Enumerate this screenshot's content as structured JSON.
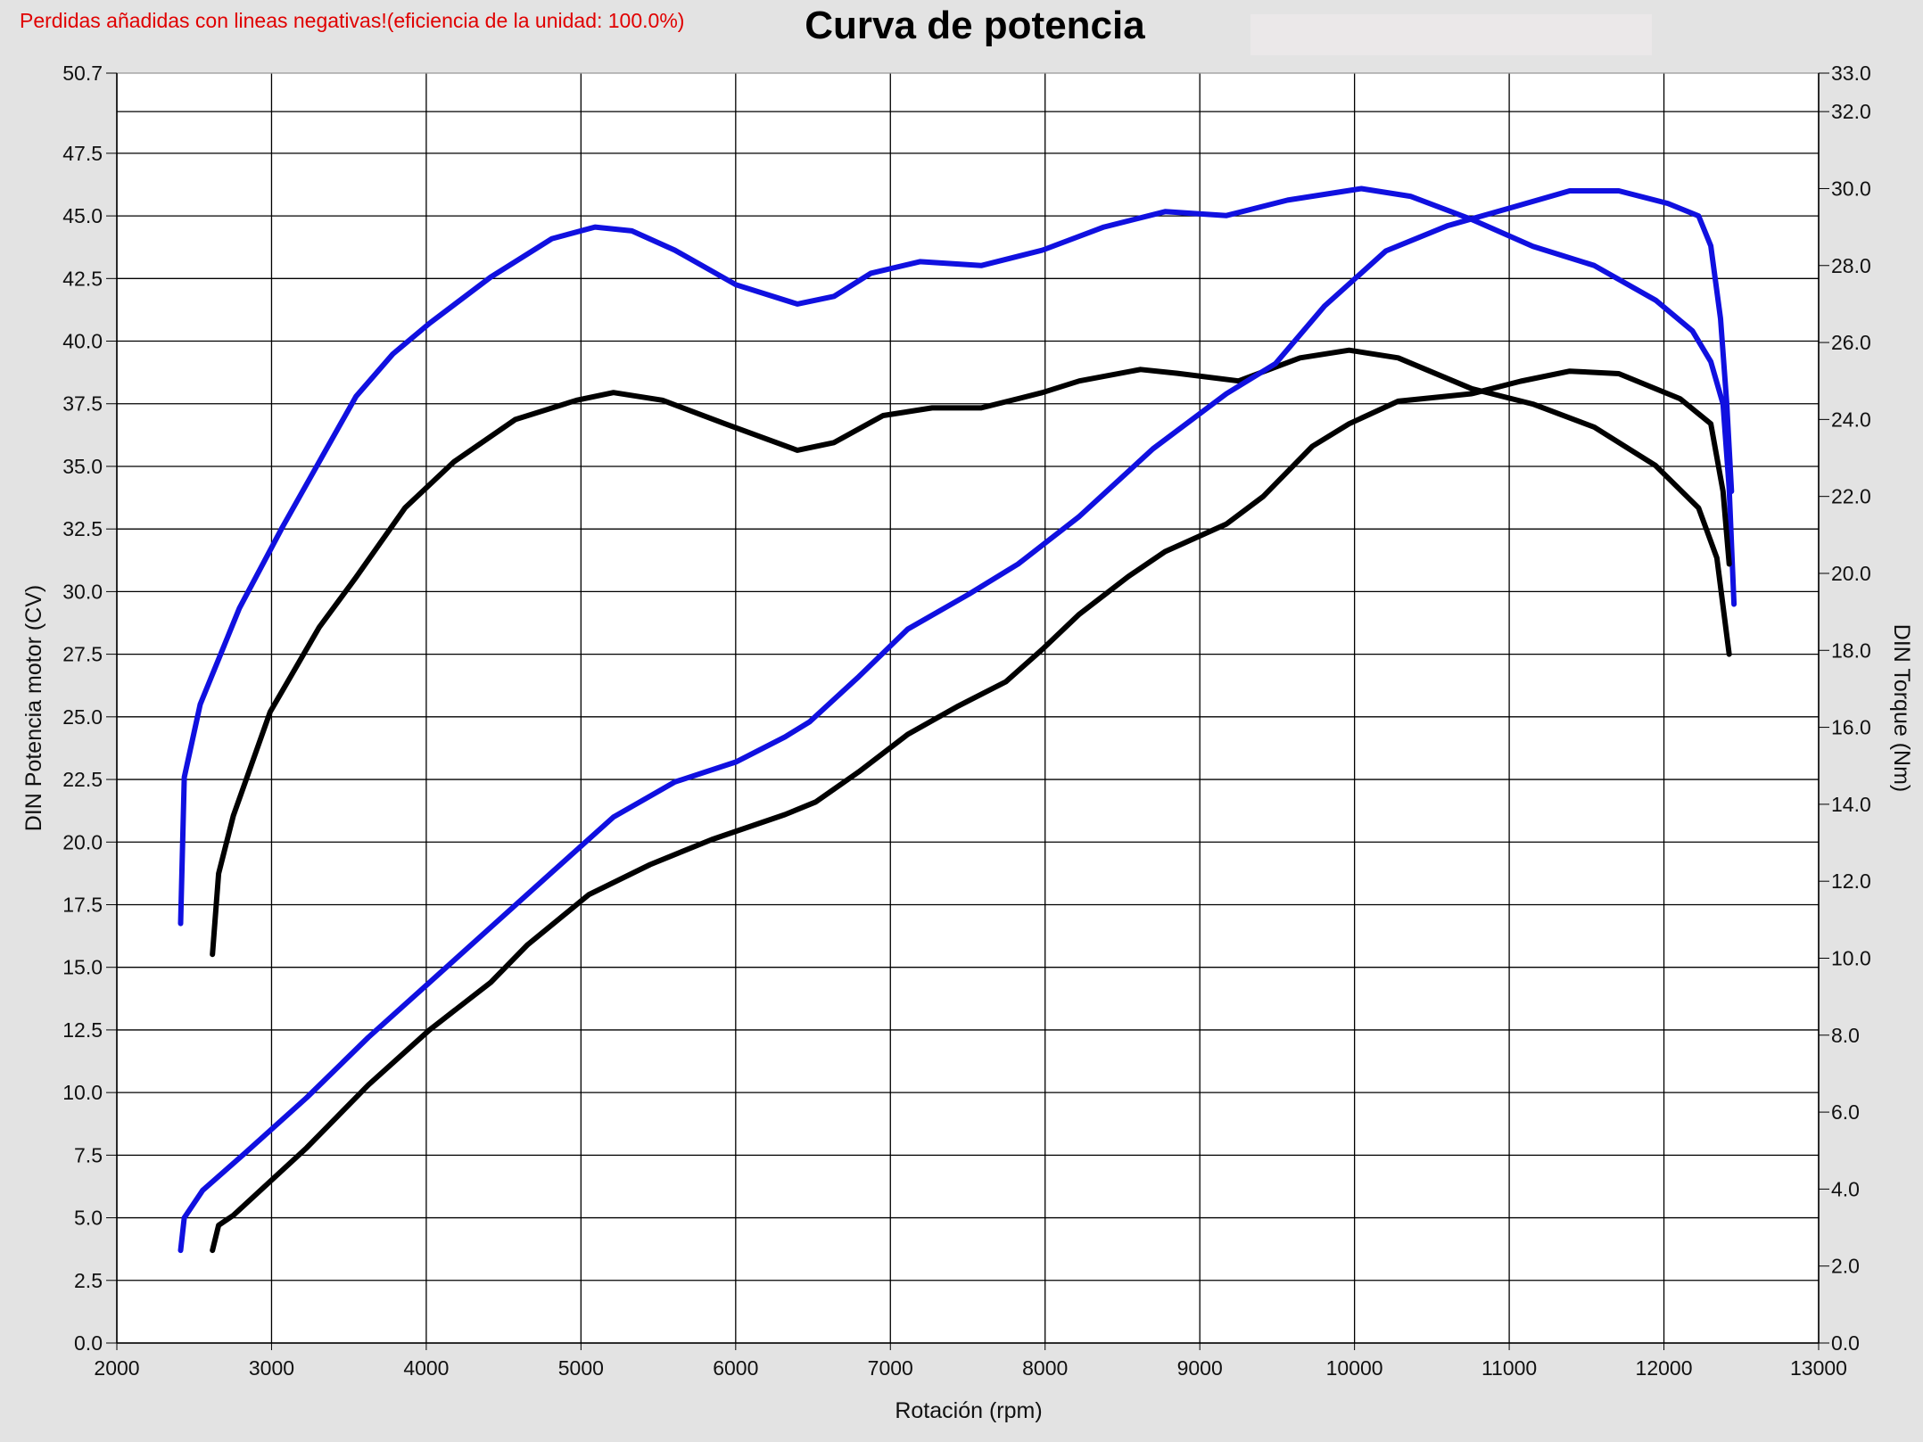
{
  "notice": "Perdidas añadidas con lineas negativas!(eficiencia de la unidad: 100.0%)",
  "colors": {
    "notice": "#e00000",
    "blue": "#1010e0",
    "black": "#000000",
    "background": "#e3e3e3",
    "plot": "#ffffff"
  },
  "chart_data": {
    "type": "line",
    "title": "Curva de potencia",
    "xlabel": "Rotación (rpm)",
    "ylabel": "DIN Potencia motor (CV)",
    "y2label": "DIN Torque (Nm)",
    "xlim": [
      2000,
      13000
    ],
    "ylim": [
      0,
      50.7
    ],
    "y2lim": [
      0,
      33.0
    ],
    "grid": true,
    "x_ticks": [
      "2000",
      "3000",
      "4000",
      "5000",
      "6000",
      "7000",
      "8000",
      "9000",
      "10000",
      "11000",
      "12000",
      "13000"
    ],
    "y_ticks": [
      "0.0",
      "2.5",
      "5.0",
      "7.5",
      "10.0",
      "12.5",
      "15.0",
      "17.5",
      "20.0",
      "22.5",
      "25.0",
      "27.5",
      "30.0",
      "32.5",
      "35.0",
      "37.5",
      "40.0",
      "42.5",
      "45.0",
      "47.5",
      "50.7"
    ],
    "y2_ticks": [
      "0.0",
      "2.0",
      "4.0",
      "6.0",
      "8.0",
      "10.0",
      "12.0",
      "14.0",
      "16.0",
      "18.0",
      "20.0",
      "22.0",
      "24.0",
      "26.0",
      "28.0",
      "30.0",
      "32.0",
      "33.0"
    ],
    "series": [
      {
        "axis": "right",
        "color": "#1010e0",
        "points": [
          [
            2412,
            10.9
          ],
          [
            2436,
            14.7
          ],
          [
            2539,
            16.6
          ],
          [
            2793,
            19.1
          ],
          [
            3070,
            21.2
          ],
          [
            3308,
            22.9
          ],
          [
            3546,
            24.6
          ],
          [
            3784,
            25.7
          ],
          [
            4021,
            26.5
          ],
          [
            4417,
            27.7
          ],
          [
            4813,
            28.7
          ],
          [
            5091,
            29.0
          ],
          [
            5329,
            28.9
          ],
          [
            5606,
            28.4
          ],
          [
            6002,
            27.5
          ],
          [
            6398,
            27.0
          ],
          [
            6636,
            27.2
          ],
          [
            6874,
            27.8
          ],
          [
            7191,
            28.1
          ],
          [
            7587,
            28.0
          ],
          [
            7983,
            28.4
          ],
          [
            8380,
            29.0
          ],
          [
            8776,
            29.4
          ],
          [
            9172,
            29.3
          ],
          [
            9568,
            29.7
          ],
          [
            10044,
            30.0
          ],
          [
            10361,
            29.8
          ],
          [
            10757,
            29.2
          ],
          [
            11153,
            28.5
          ],
          [
            11550,
            28.0
          ],
          [
            11946,
            27.1
          ],
          [
            12184,
            26.3
          ],
          [
            12303,
            25.5
          ],
          [
            12382,
            24.4
          ],
          [
            12422,
            22.2
          ],
          [
            12453,
            19.2
          ]
        ]
      },
      {
        "axis": "right",
        "color": "#000000",
        "points": [
          [
            2618,
            10.1
          ],
          [
            2658,
            12.2
          ],
          [
            2753,
            13.7
          ],
          [
            2991,
            16.4
          ],
          [
            3308,
            18.6
          ],
          [
            3546,
            19.9
          ],
          [
            3862,
            21.7
          ],
          [
            4179,
            22.9
          ],
          [
            4576,
            24.0
          ],
          [
            4972,
            24.5
          ],
          [
            5210,
            24.7
          ],
          [
            5527,
            24.5
          ],
          [
            5923,
            23.9
          ],
          [
            6398,
            23.2
          ],
          [
            6636,
            23.4
          ],
          [
            6953,
            24.1
          ],
          [
            7270,
            24.3
          ],
          [
            7587,
            24.3
          ],
          [
            7983,
            24.7
          ],
          [
            8221,
            25.0
          ],
          [
            8617,
            25.3
          ],
          [
            8855,
            25.2
          ],
          [
            9251,
            25.0
          ],
          [
            9648,
            25.6
          ],
          [
            9965,
            25.8
          ],
          [
            10282,
            25.6
          ],
          [
            10757,
            24.8
          ],
          [
            11153,
            24.4
          ],
          [
            11550,
            23.8
          ],
          [
            11946,
            22.8
          ],
          [
            12224,
            21.7
          ],
          [
            12342,
            20.4
          ],
          [
            12422,
            17.9
          ]
        ]
      },
      {
        "axis": "left",
        "color": "#1010e0",
        "points": [
          [
            2412,
            3.7
          ],
          [
            2436,
            5.0
          ],
          [
            2555,
            6.1
          ],
          [
            2832,
            7.6
          ],
          [
            3228,
            9.8
          ],
          [
            3625,
            12.2
          ],
          [
            4021,
            14.4
          ],
          [
            4417,
            16.6
          ],
          [
            4813,
            18.8
          ],
          [
            5210,
            21.0
          ],
          [
            5606,
            22.4
          ],
          [
            6002,
            23.2
          ],
          [
            6319,
            24.2
          ],
          [
            6478,
            24.8
          ],
          [
            6795,
            26.6
          ],
          [
            7112,
            28.5
          ],
          [
            7508,
            29.9
          ],
          [
            7825,
            31.1
          ],
          [
            8221,
            33.0
          ],
          [
            8697,
            35.7
          ],
          [
            9172,
            37.9
          ],
          [
            9489,
            39.1
          ],
          [
            9806,
            41.4
          ],
          [
            10203,
            43.6
          ],
          [
            10599,
            44.6
          ],
          [
            10995,
            45.3
          ],
          [
            11391,
            46.0
          ],
          [
            11708,
            46.0
          ],
          [
            12025,
            45.5
          ],
          [
            12224,
            45.0
          ],
          [
            12303,
            43.8
          ],
          [
            12366,
            40.9
          ],
          [
            12406,
            37.5
          ],
          [
            12437,
            34.0
          ]
        ]
      },
      {
        "axis": "left",
        "color": "#000000",
        "points": [
          [
            2618,
            3.7
          ],
          [
            2658,
            4.7
          ],
          [
            2753,
            5.1
          ],
          [
            3228,
            7.8
          ],
          [
            3625,
            10.3
          ],
          [
            4021,
            12.5
          ],
          [
            4417,
            14.4
          ],
          [
            4655,
            15.9
          ],
          [
            5051,
            17.9
          ],
          [
            5447,
            19.1
          ],
          [
            5844,
            20.1
          ],
          [
            6319,
            21.1
          ],
          [
            6517,
            21.6
          ],
          [
            6795,
            22.8
          ],
          [
            7112,
            24.3
          ],
          [
            7429,
            25.4
          ],
          [
            7746,
            26.4
          ],
          [
            7983,
            27.7
          ],
          [
            8221,
            29.1
          ],
          [
            8538,
            30.6
          ],
          [
            8776,
            31.6
          ],
          [
            9172,
            32.7
          ],
          [
            9410,
            33.8
          ],
          [
            9727,
            35.8
          ],
          [
            9965,
            36.7
          ],
          [
            10282,
            37.6
          ],
          [
            10757,
            37.9
          ],
          [
            11074,
            38.4
          ],
          [
            11391,
            38.8
          ],
          [
            11708,
            38.7
          ],
          [
            12104,
            37.7
          ],
          [
            12303,
            36.7
          ],
          [
            12382,
            34.0
          ],
          [
            12422,
            31.1
          ]
        ]
      }
    ]
  }
}
